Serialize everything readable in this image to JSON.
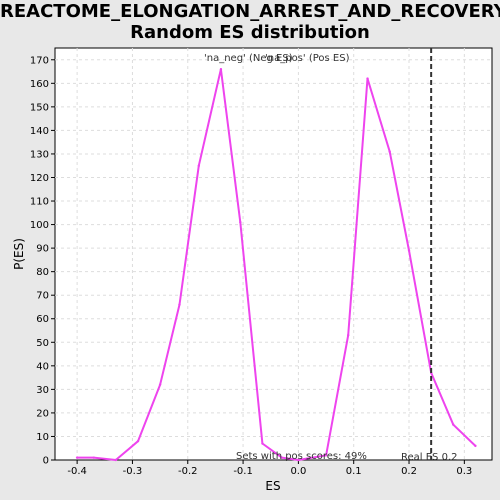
{
  "chart_data": {
    "type": "line",
    "title_line1": "REACTOME_ELONGATION_ARREST_AND_RECOVERY:",
    "title_line2": "Random ES distribution",
    "xlabel": "ES",
    "ylabel": "P(ES)",
    "xlim": [
      -0.44,
      0.35
    ],
    "ylim": [
      0,
      175
    ],
    "xticks": [
      -0.4,
      -0.3,
      -0.2,
      -0.1,
      0.0,
      0.1,
      0.2,
      0.3
    ],
    "xtick_labels": [
      "-0.4",
      "-0.3",
      "-0.2",
      "-0.1",
      "0.0",
      "0.1",
      "0.2",
      "0.3"
    ],
    "yticks": [
      0,
      10,
      20,
      30,
      40,
      50,
      60,
      70,
      80,
      90,
      100,
      110,
      120,
      130,
      140,
      150,
      160,
      170
    ],
    "grid": true,
    "legend": [
      {
        "label": "'na_neg' (Neg ES)",
        "color": "#5555dd"
      },
      {
        "label": "'na_pos' (Pos ES)",
        "color": "#dd3333"
      }
    ],
    "series": [
      {
        "color": "#ee44ee",
        "x": [
          -0.4,
          -0.37,
          -0.33,
          -0.29,
          -0.25,
          -0.215,
          -0.18,
          -0.14,
          -0.105,
          -0.065,
          -0.03,
          0.0,
          0.05,
          0.09,
          0.125,
          0.165,
          0.2,
          0.24,
          0.28,
          0.32
        ],
        "y": [
          1,
          1,
          0,
          8,
          32,
          66,
          125,
          166,
          101,
          7,
          1,
          0,
          2,
          53,
          162,
          131,
          89,
          37,
          15,
          6
        ]
      }
    ],
    "real_es": 0.24,
    "real_es_label": "Real ES 0.2",
    "annotation": "Sets with pos scores: 49%"
  }
}
